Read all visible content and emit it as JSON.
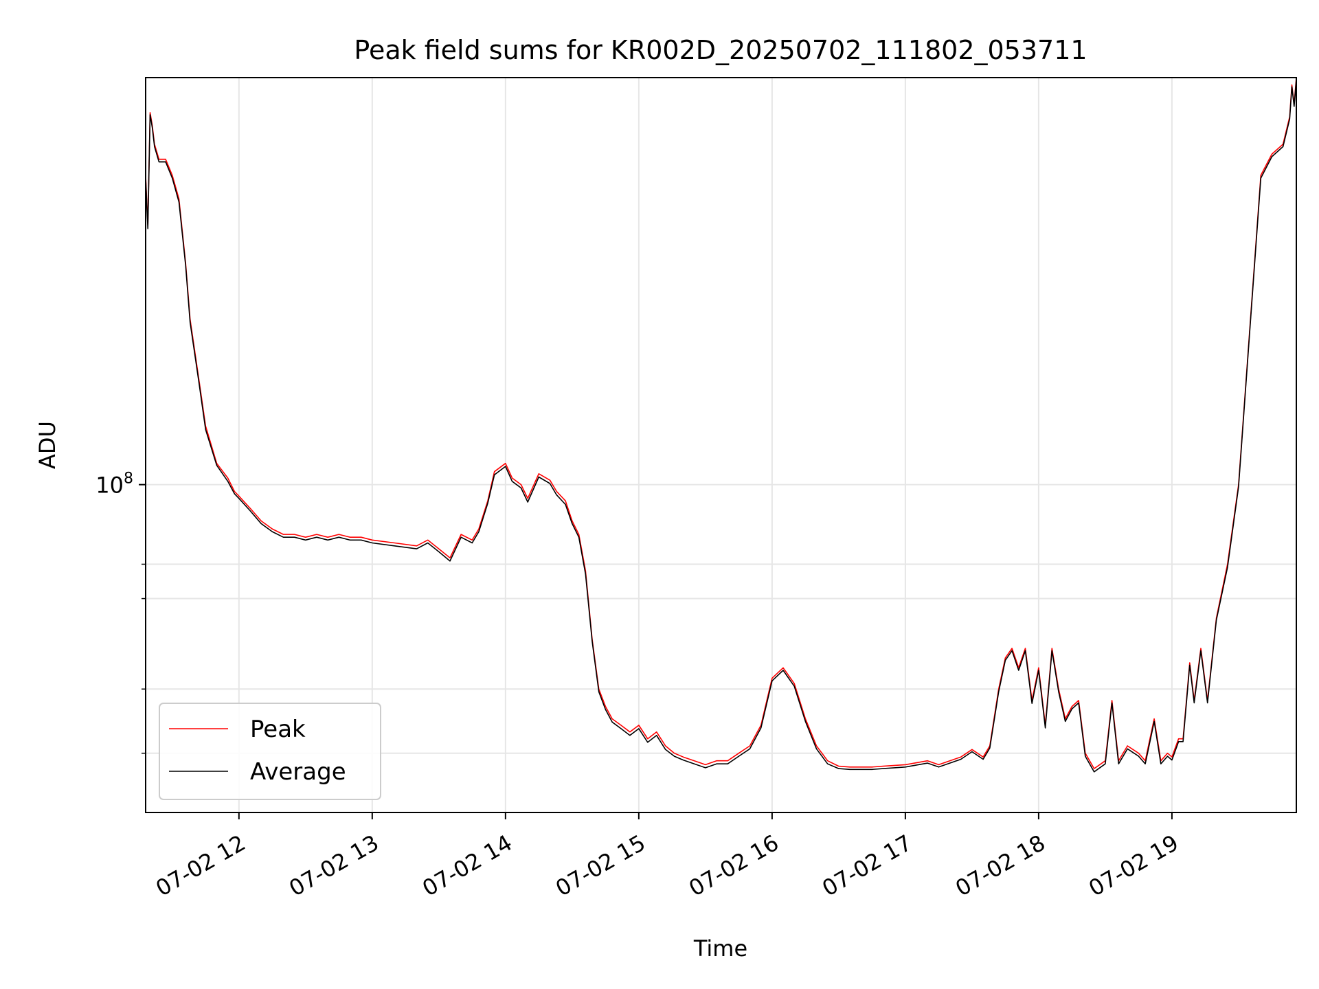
{
  "chart_data": {
    "type": "line",
    "title": "Peak field sums for KR002D_20250702_111802_053711",
    "xlabel": "Time",
    "ylabel": "ADU",
    "y_scale": "log",
    "xlim": [
      "2025-07-02 11:18",
      "2025-07-02 19:56"
    ],
    "ylim": [
      23000000.0,
      620000000.0
    ],
    "grid": true,
    "legend_position": "lower-left",
    "x_tick_labels": [
      "07-02 12",
      "07-02 13",
      "07-02 14",
      "07-02 15",
      "07-02 16",
      "07-02 17",
      "07-02 18",
      "07-02 19"
    ],
    "x_ticks": [
      "2025-07-02 12:00",
      "2025-07-02 13:00",
      "2025-07-02 14:00",
      "2025-07-02 15:00",
      "2025-07-02 16:00",
      "2025-07-02 17:00",
      "2025-07-02 18:00",
      "2025-07-02 19:00"
    ],
    "y_major_ticks": [
      {
        "value": 100000000,
        "label_base": "10",
        "label_exp": "8"
      }
    ],
    "y_minor_ticks": [
      30000000,
      40000000,
      60000000,
      70000000
    ],
    "colors": {
      "Peak": "#ff0000",
      "Average": "#000000"
    },
    "x": [
      "2025-07-02 11:18",
      "2025-07-02 11:19",
      "2025-07-02 11:20",
      "2025-07-02 11:21",
      "2025-07-02 11:22",
      "2025-07-02 11:24",
      "2025-07-02 11:27",
      "2025-07-02 11:30",
      "2025-07-02 11:33",
      "2025-07-02 11:36",
      "2025-07-02 11:38",
      "2025-07-02 11:42",
      "2025-07-02 11:45",
      "2025-07-02 11:50",
      "2025-07-02 11:55",
      "2025-07-02 11:58",
      "2025-07-02 12:00",
      "2025-07-02 12:05",
      "2025-07-02 12:10",
      "2025-07-02 12:15",
      "2025-07-02 12:20",
      "2025-07-02 12:25",
      "2025-07-02 12:30",
      "2025-07-02 12:35",
      "2025-07-02 12:40",
      "2025-07-02 12:45",
      "2025-07-02 12:50",
      "2025-07-02 12:55",
      "2025-07-02 13:00",
      "2025-07-02 13:10",
      "2025-07-02 13:20",
      "2025-07-02 13:25",
      "2025-07-02 13:30",
      "2025-07-02 13:35",
      "2025-07-02 13:40",
      "2025-07-02 13:45",
      "2025-07-02 13:48",
      "2025-07-02 13:52",
      "2025-07-02 13:55",
      "2025-07-02 14:00",
      "2025-07-02 14:03",
      "2025-07-02 14:07",
      "2025-07-02 14:10",
      "2025-07-02 14:15",
      "2025-07-02 14:20",
      "2025-07-02 14:23",
      "2025-07-02 14:27",
      "2025-07-02 14:30",
      "2025-07-02 14:33",
      "2025-07-02 14:36",
      "2025-07-02 14:39",
      "2025-07-02 14:42",
      "2025-07-02 14:45",
      "2025-07-02 14:48",
      "2025-07-02 14:52",
      "2025-07-02 14:56",
      "2025-07-02 15:00",
      "2025-07-02 15:04",
      "2025-07-02 15:08",
      "2025-07-02 15:12",
      "2025-07-02 15:16",
      "2025-07-02 15:20",
      "2025-07-02 15:25",
      "2025-07-02 15:30",
      "2025-07-02 15:35",
      "2025-07-02 15:40",
      "2025-07-02 15:45",
      "2025-07-02 15:50",
      "2025-07-02 15:55",
      "2025-07-02 16:00",
      "2025-07-02 16:05",
      "2025-07-02 16:10",
      "2025-07-02 16:15",
      "2025-07-02 16:20",
      "2025-07-02 16:25",
      "2025-07-02 16:30",
      "2025-07-02 16:35",
      "2025-07-02 16:40",
      "2025-07-02 16:45",
      "2025-07-02 16:50",
      "2025-07-02 17:00",
      "2025-07-02 17:10",
      "2025-07-02 17:15",
      "2025-07-02 17:20",
      "2025-07-02 17:25",
      "2025-07-02 17:30",
      "2025-07-02 17:35",
      "2025-07-02 17:38",
      "2025-07-02 17:42",
      "2025-07-02 17:45",
      "2025-07-02 17:48",
      "2025-07-02 17:51",
      "2025-07-02 17:54",
      "2025-07-02 17:57",
      "2025-07-02 18:00",
      "2025-07-02 18:03",
      "2025-07-02 18:06",
      "2025-07-02 18:09",
      "2025-07-02 18:12",
      "2025-07-02 18:15",
      "2025-07-02 18:18",
      "2025-07-02 18:21",
      "2025-07-02 18:25",
      "2025-07-02 18:30",
      "2025-07-02 18:33",
      "2025-07-02 18:36",
      "2025-07-02 18:40",
      "2025-07-02 18:45",
      "2025-07-02 18:48",
      "2025-07-02 18:52",
      "2025-07-02 18:55",
      "2025-07-02 18:58",
      "2025-07-02 19:00",
      "2025-07-02 19:03",
      "2025-07-02 19:05",
      "2025-07-02 19:08",
      "2025-07-02 19:10",
      "2025-07-02 19:13",
      "2025-07-02 19:16",
      "2025-07-02 19:20",
      "2025-07-02 19:25",
      "2025-07-02 19:30",
      "2025-07-02 19:35",
      "2025-07-02 19:40",
      "2025-07-02 19:45",
      "2025-07-02 19:50",
      "2025-07-02 19:53",
      "2025-07-02 19:54",
      "2025-07-02 19:55",
      "2025-07-02 19:56"
    ],
    "series": [
      {
        "name": "Peak",
        "values": [
          400000000,
          320000000,
          530000000,
          500000000,
          460000000,
          430000000,
          430000000,
          400000000,
          360000000,
          270000000,
          210000000,
          160000000,
          130000000,
          110000000,
          103000000,
          97000000,
          95000000,
          90000000,
          85000000,
          82000000,
          80000000,
          80000000,
          79000000,
          80000000,
          79000000,
          80000000,
          79000000,
          79000000,
          78000000,
          77000000,
          76000000,
          78000000,
          75000000,
          72000000,
          80000000,
          78000000,
          82000000,
          93000000,
          106000000,
          110000000,
          103000000,
          100000000,
          94000000,
          105000000,
          102000000,
          97000000,
          93000000,
          85000000,
          80000000,
          68000000,
          50000000,
          40000000,
          37000000,
          35000000,
          34000000,
          33000000,
          34000000,
          32000000,
          33000000,
          31000000,
          30000000,
          29500000,
          29000000,
          28500000,
          29000000,
          29000000,
          30000000,
          31000000,
          34000000,
          42000000,
          44000000,
          41000000,
          35000000,
          31000000,
          29000000,
          28300000,
          28200000,
          28200000,
          28200000,
          28300000,
          28500000,
          29000000,
          28500000,
          29000000,
          29500000,
          30500000,
          29500000,
          31000000,
          40000000,
          46000000,
          48000000,
          44000000,
          48000000,
          38000000,
          44000000,
          34000000,
          48000000,
          40000000,
          35000000,
          37000000,
          38000000,
          30000000,
          28000000,
          29000000,
          38000000,
          29000000,
          31000000,
          30000000,
          29000000,
          35000000,
          29000000,
          30000000,
          29500000,
          32000000,
          32000000,
          45000000,
          38000000,
          48000000,
          38000000,
          55000000,
          70000000,
          100000000,
          200000000,
          400000000,
          440000000,
          460000000,
          520000000,
          600000000,
          550000000,
          620000000
        ]
      },
      {
        "name": "Average",
        "values": [
          395000000,
          315000000,
          525000000,
          495000000,
          455000000,
          425000000,
          425000000,
          395000000,
          355000000,
          267000000,
          207000000,
          158000000,
          128000000,
          109000000,
          101500000,
          96000000,
          94000000,
          89000000,
          84000000,
          81000000,
          79000000,
          79000000,
          78000000,
          79000000,
          78000000,
          79000000,
          78000000,
          78000000,
          77000000,
          76000000,
          75000000,
          77000000,
          74000000,
          71000000,
          79000000,
          77000000,
          81000000,
          92000000,
          104500000,
          108500000,
          101500000,
          98500000,
          92500000,
          103500000,
          100500000,
          95500000,
          91500000,
          84000000,
          79000000,
          67000000,
          49500000,
          39500000,
          36500000,
          34500000,
          33500000,
          32500000,
          33500000,
          31500000,
          32500000,
          30500000,
          29600000,
          29100000,
          28600000,
          28100000,
          28600000,
          28600000,
          29600000,
          30600000,
          33600000,
          41500000,
          43500000,
          40500000,
          34600000,
          30600000,
          28600000,
          28000000,
          27900000,
          27900000,
          27900000,
          28000000,
          28200000,
          28700000,
          28200000,
          28700000,
          29200000,
          30200000,
          29200000,
          30700000,
          39500000,
          45500000,
          47500000,
          43500000,
          47500000,
          37500000,
          43500000,
          33600000,
          47500000,
          39500000,
          34600000,
          36600000,
          37600000,
          29600000,
          27600000,
          28600000,
          37600000,
          28600000,
          30600000,
          29600000,
          28600000,
          34600000,
          28600000,
          29600000,
          29100000,
          31600000,
          31600000,
          44500000,
          37600000,
          47500000,
          37600000,
          54500000,
          69000000,
          99000000,
          198000000,
          395000000,
          435000000,
          455000000,
          515000000,
          595000000,
          545000000,
          615000000
        ]
      }
    ]
  }
}
